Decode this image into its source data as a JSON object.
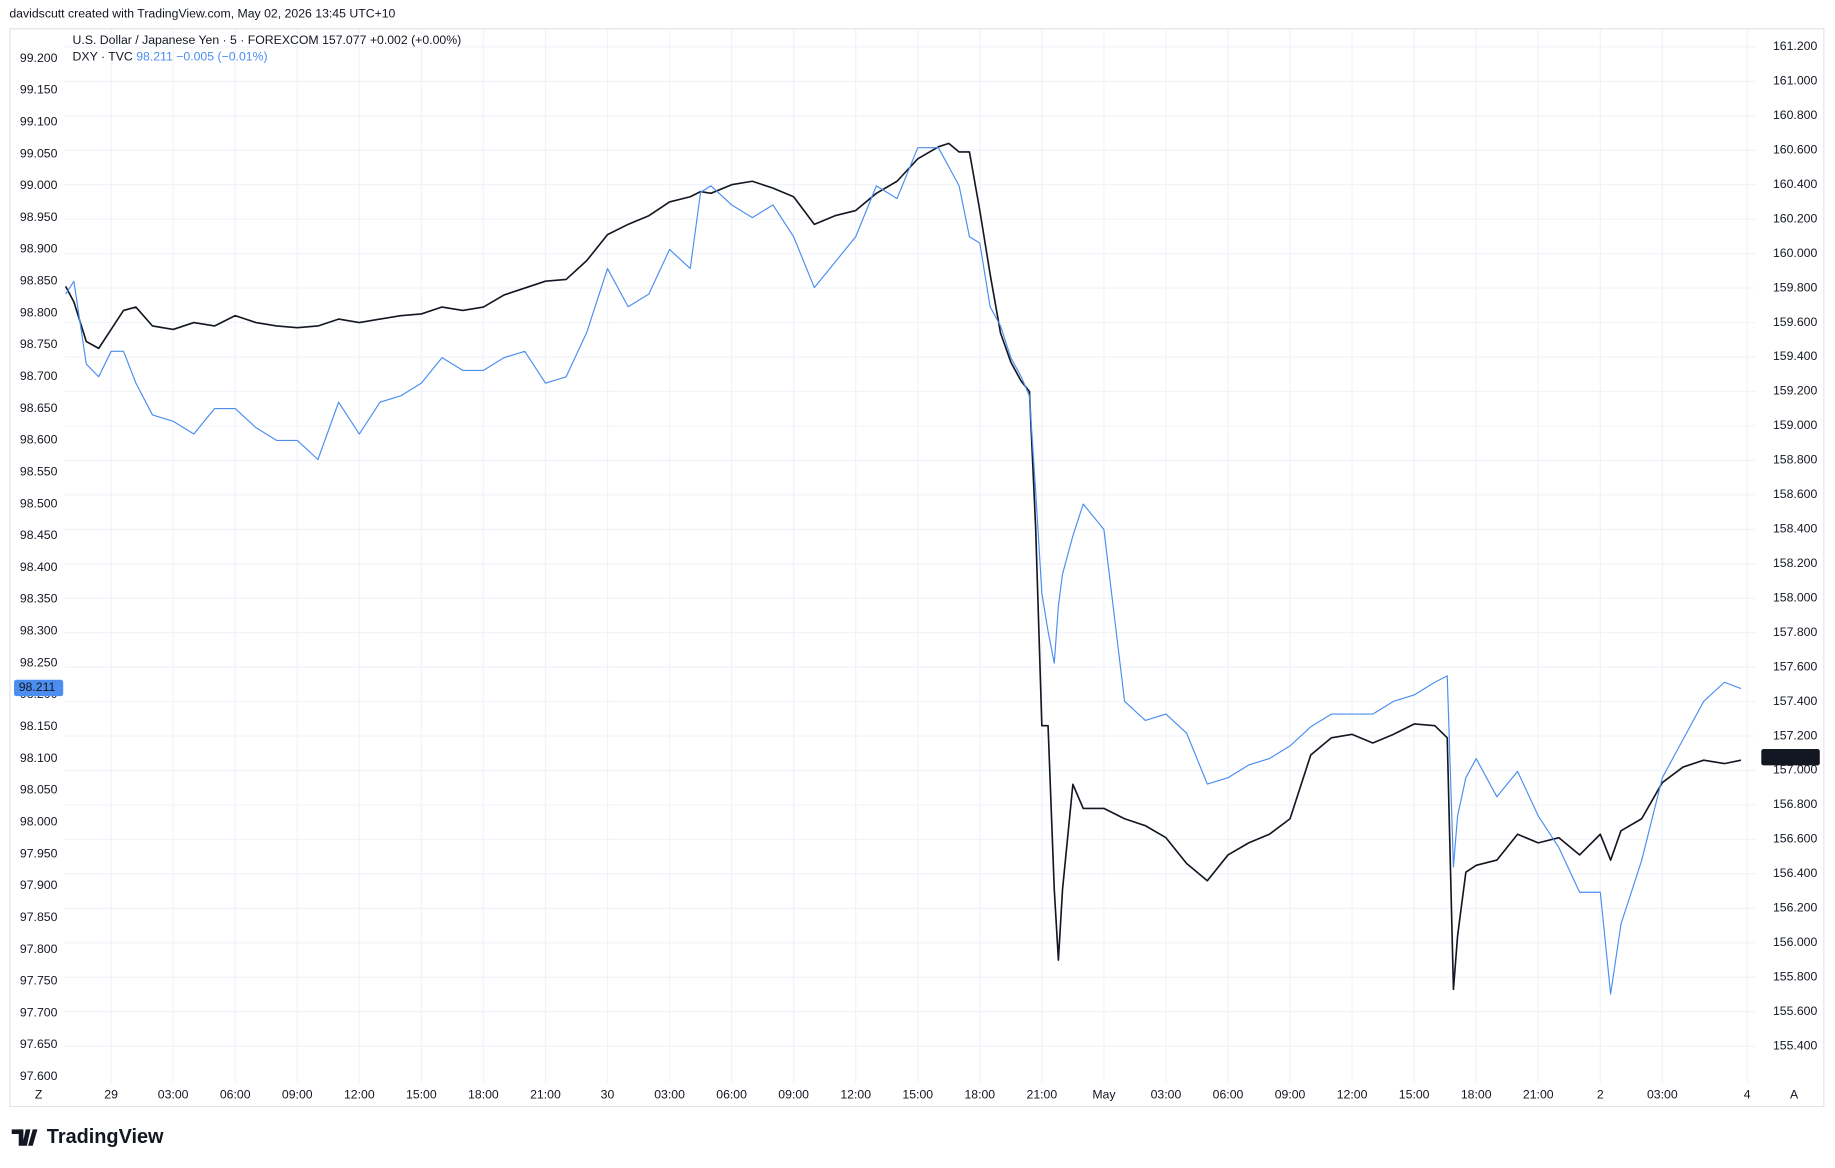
{
  "header": {
    "credit": "davidscutt created with TradingView.com, May 02, 2026 13:45 UTC+10"
  },
  "footer": {
    "logo": "TradingView"
  },
  "buttons": {
    "timezone": "Z",
    "auto_scale": "A"
  },
  "chart_data": {
    "type": "line",
    "grid": true,
    "x": [
      -2.2,
      -1.8,
      -1.2,
      -0.6,
      0,
      0.6,
      1.2,
      2,
      3,
      4,
      5,
      6,
      7,
      8,
      9,
      10,
      11,
      12,
      13,
      14,
      15,
      16,
      17,
      18,
      19,
      20,
      21,
      22,
      23,
      24,
      25,
      26,
      27,
      28,
      28.5,
      29,
      30,
      31,
      32,
      33,
      34,
      35,
      36,
      37,
      38,
      39,
      40,
      40.5,
      41,
      41.5,
      42,
      42.5,
      43,
      43.5,
      44,
      44.4,
      44.7,
      45,
      45.3,
      45.6,
      45.8,
      46,
      46.5,
      47,
      48,
      49,
      50,
      51,
      52,
      53,
      54,
      55,
      56,
      57,
      58,
      59,
      60,
      61,
      62,
      63,
      64,
      64.6,
      64.9,
      65.1,
      65.5,
      66,
      67,
      68,
      69,
      70,
      71,
      72,
      72.5,
      73,
      74,
      75,
      76,
      77,
      78,
      78.8
    ],
    "xlim": [
      -2.26,
      79.5
    ],
    "xticks": [
      {
        "value": 0,
        "label": "29"
      },
      {
        "value": 3,
        "label": "03:00"
      },
      {
        "value": 6,
        "label": "06:00"
      },
      {
        "value": 9,
        "label": "09:00"
      },
      {
        "value": 12,
        "label": "12:00"
      },
      {
        "value": 15,
        "label": "15:00"
      },
      {
        "value": 18,
        "label": "18:00"
      },
      {
        "value": 21,
        "label": "21:00"
      },
      {
        "value": 24,
        "label": "30"
      },
      {
        "value": 27,
        "label": "03:00"
      },
      {
        "value": 30,
        "label": "06:00"
      },
      {
        "value": 33,
        "label": "09:00"
      },
      {
        "value": 36,
        "label": "12:00"
      },
      {
        "value": 39,
        "label": "15:00"
      },
      {
        "value": 42,
        "label": "18:00"
      },
      {
        "value": 45,
        "label": "21:00"
      },
      {
        "value": 48,
        "label": "May"
      },
      {
        "value": 51,
        "label": "03:00"
      },
      {
        "value": 54,
        "label": "06:00"
      },
      {
        "value": 57,
        "label": "09:00"
      },
      {
        "value": 60,
        "label": "12:00"
      },
      {
        "value": 63,
        "label": "15:00"
      },
      {
        "value": 66,
        "label": "18:00"
      },
      {
        "value": 69,
        "label": "21:00"
      },
      {
        "value": 72,
        "label": "2"
      },
      {
        "value": 75,
        "label": "03:00"
      },
      {
        "value": 79.1,
        "label": "4"
      }
    ],
    "ylim": [
      97.591,
      99.246
    ],
    "yticks": [
      {
        "value": 97.6,
        "label": "97.600"
      },
      {
        "value": 97.65,
        "label": "97.650"
      },
      {
        "value": 97.7,
        "label": "97.700"
      },
      {
        "value": 97.75,
        "label": "97.750"
      },
      {
        "value": 97.8,
        "label": "97.800"
      },
      {
        "value": 97.85,
        "label": "97.850"
      },
      {
        "value": 97.9,
        "label": "97.900"
      },
      {
        "value": 97.95,
        "label": "97.950"
      },
      {
        "value": 98,
        "label": "98.000"
      },
      {
        "value": 98.05,
        "label": "98.050"
      },
      {
        "value": 98.1,
        "label": "98.100"
      },
      {
        "value": 98.15,
        "label": "98.150"
      },
      {
        "value": 98.2,
        "label": "98.200"
      },
      {
        "value": 98.25,
        "label": "98.250"
      },
      {
        "value": 98.3,
        "label": "98.300"
      },
      {
        "value": 98.35,
        "label": "98.350"
      },
      {
        "value": 98.4,
        "label": "98.400"
      },
      {
        "value": 98.45,
        "label": "98.450"
      },
      {
        "value": 98.5,
        "label": "98.500"
      },
      {
        "value": 98.55,
        "label": "98.550"
      },
      {
        "value": 98.6,
        "label": "98.600"
      },
      {
        "value": 98.65,
        "label": "98.650"
      },
      {
        "value": 98.7,
        "label": "98.700"
      },
      {
        "value": 98.75,
        "label": "98.750"
      },
      {
        "value": 98.8,
        "label": "98.800"
      },
      {
        "value": 98.85,
        "label": "98.850"
      },
      {
        "value": 98.9,
        "label": "98.900"
      },
      {
        "value": 98.95,
        "label": "98.950"
      },
      {
        "value": 99,
        "label": "99.000"
      },
      {
        "value": 99.05,
        "label": "99.050"
      },
      {
        "value": 99.1,
        "label": "99.100"
      },
      {
        "value": 99.15,
        "label": "99.150"
      },
      {
        "value": 99.2,
        "label": "99.200"
      }
    ],
    "y2lim": [
      155.189,
      161.302
    ],
    "y2ticks": [
      {
        "value": 155.4,
        "label": "155.400"
      },
      {
        "value": 155.6,
        "label": "155.600"
      },
      {
        "value": 155.8,
        "label": "155.800"
      },
      {
        "value": 156,
        "label": "156.000"
      },
      {
        "value": 156.2,
        "label": "156.200"
      },
      {
        "value": 156.4,
        "label": "156.400"
      },
      {
        "value": 156.6,
        "label": "156.600"
      },
      {
        "value": 156.8,
        "label": "156.800"
      },
      {
        "value": 157,
        "label": "157.000"
      },
      {
        "value": 157.2,
        "label": "157.200"
      },
      {
        "value": 157.4,
        "label": "157.400"
      },
      {
        "value": 157.6,
        "label": "157.600"
      },
      {
        "value": 157.8,
        "label": "157.800"
      },
      {
        "value": 158,
        "label": "158.000"
      },
      {
        "value": 158.2,
        "label": "158.200"
      },
      {
        "value": 158.4,
        "label": "158.400"
      },
      {
        "value": 158.6,
        "label": "158.600"
      },
      {
        "value": 158.8,
        "label": "158.800"
      },
      {
        "value": 159,
        "label": "159.000"
      },
      {
        "value": 159.2,
        "label": "159.200"
      },
      {
        "value": 159.4,
        "label": "159.400"
      },
      {
        "value": 159.6,
        "label": "159.600"
      },
      {
        "value": 159.8,
        "label": "159.800"
      },
      {
        "value": 160,
        "label": "160.000"
      },
      {
        "value": 160.2,
        "label": "160.200"
      },
      {
        "value": 160.4,
        "label": "160.400"
      },
      {
        "value": 160.6,
        "label": "160.600"
      },
      {
        "value": 160.8,
        "label": "160.800"
      },
      {
        "value": 161,
        "label": "161.000"
      },
      {
        "value": 161.2,
        "label": "161.200"
      }
    ],
    "series": [
      {
        "name": "U.S. Dollar / Japanese Yen · 5 · FOREXCOM",
        "last": 157.077,
        "change": "+0.002 (+0.00%)",
        "color": "#131722",
        "axis": "y2",
        "values": [
          159.81,
          159.72,
          159.49,
          159.45,
          159.56,
          159.67,
          159.69,
          159.58,
          159.56,
          159.6,
          159.58,
          159.64,
          159.6,
          159.58,
          159.57,
          159.58,
          159.62,
          159.6,
          159.62,
          159.64,
          159.65,
          159.69,
          159.67,
          159.69,
          159.76,
          159.8,
          159.84,
          159.85,
          159.96,
          160.11,
          160.17,
          160.22,
          160.3,
          160.33,
          160.36,
          160.35,
          160.4,
          160.42,
          160.38,
          160.33,
          160.17,
          160.22,
          160.25,
          160.35,
          160.42,
          160.55,
          160.62,
          160.64,
          160.59,
          160.59,
          160.25,
          159.88,
          159.54,
          159.37,
          159.26,
          159.2,
          158.41,
          157.26,
          157.26,
          156.31,
          155.9,
          156.31,
          156.92,
          156.78,
          156.78,
          156.72,
          156.68,
          156.61,
          156.46,
          156.36,
          156.51,
          156.58,
          156.63,
          156.72,
          157.09,
          157.19,
          157.21,
          157.16,
          157.21,
          157.27,
          157.26,
          157.19,
          155.73,
          156.04,
          156.41,
          156.45,
          156.48,
          156.63,
          156.58,
          156.61,
          156.51,
          156.63,
          156.48,
          156.65,
          156.72,
          156.93,
          157.02,
          157.06,
          157.04,
          157.06
        ]
      },
      {
        "name": "DXY · TVC",
        "last": 98.211,
        "change": "−0.005 (−0.01%)",
        "color": "#4c8ef0",
        "axis": "y",
        "values": [
          98.83,
          98.85,
          98.72,
          98.7,
          98.74,
          98.74,
          98.69,
          98.64,
          98.63,
          98.61,
          98.65,
          98.65,
          98.62,
          98.6,
          98.6,
          98.57,
          98.66,
          98.61,
          98.66,
          98.67,
          98.69,
          98.73,
          98.71,
          98.71,
          98.73,
          98.74,
          98.69,
          98.7,
          98.77,
          98.87,
          98.81,
          98.83,
          98.9,
          98.87,
          98.99,
          99.0,
          98.97,
          98.95,
          98.97,
          98.92,
          98.84,
          98.88,
          98.92,
          99.0,
          98.98,
          99.06,
          99.06,
          99.03,
          99.0,
          98.92,
          98.91,
          98.81,
          98.78,
          98.73,
          98.7,
          98.67,
          98.52,
          98.36,
          98.3,
          98.25,
          98.34,
          98.39,
          98.45,
          98.5,
          98.46,
          98.19,
          98.16,
          98.17,
          98.14,
          98.06,
          98.07,
          98.09,
          98.1,
          98.12,
          98.15,
          98.17,
          98.17,
          98.17,
          98.19,
          98.2,
          98.22,
          98.23,
          97.93,
          98.01,
          98.07,
          98.1,
          98.04,
          98.08,
          98.01,
          97.96,
          97.89,
          97.89,
          97.73,
          97.84,
          97.94,
          98.07,
          98.13,
          98.19,
          98.22,
          98.21
        ]
      }
    ]
  }
}
